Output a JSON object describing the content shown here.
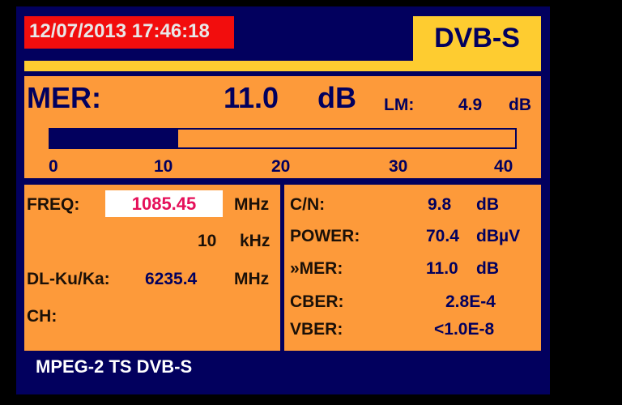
{
  "datetime": "12/07/2013 17:46:18",
  "standard": "DVB-S",
  "mer": {
    "label": "MER:",
    "value": "11.0",
    "unit": "dB",
    "lm_label": "LM:",
    "lm_value": "4.9",
    "lm_unit": "dB",
    "bar": {
      "value": 11.0,
      "min": 0,
      "max": 40,
      "ticks": [
        "0",
        "10",
        "20",
        "30",
        "40"
      ]
    }
  },
  "left": {
    "freq_label": "FREQ:",
    "freq_value": "1085.45",
    "freq_unit": "MHz",
    "step_value": "10",
    "step_unit": "kHz",
    "dl_label": "DL-Ku/Ka:",
    "dl_value": "6235.4",
    "dl_unit": "MHz",
    "ch_label": "CH:"
  },
  "right": [
    {
      "label": "C/N:",
      "value": "9.8",
      "unit": "dB"
    },
    {
      "label": "POWER:",
      "value": "70.4",
      "unit": "dBµV"
    },
    {
      "label": "»MER:",
      "value": "11.0",
      "unit": "dB"
    },
    {
      "label": "CBER:",
      "value": "2.8E-4",
      "unit": ""
    },
    {
      "label": "VBER:",
      "value": "<1.0E-8",
      "unit": ""
    }
  ],
  "footer": "MPEG-2 TS DVB-S",
  "colors": {
    "background": "#02005e",
    "panel": "#fd9a3a",
    "header": "#fecc30",
    "datetime": "#f20d0d",
    "freq": "#e5105a"
  }
}
